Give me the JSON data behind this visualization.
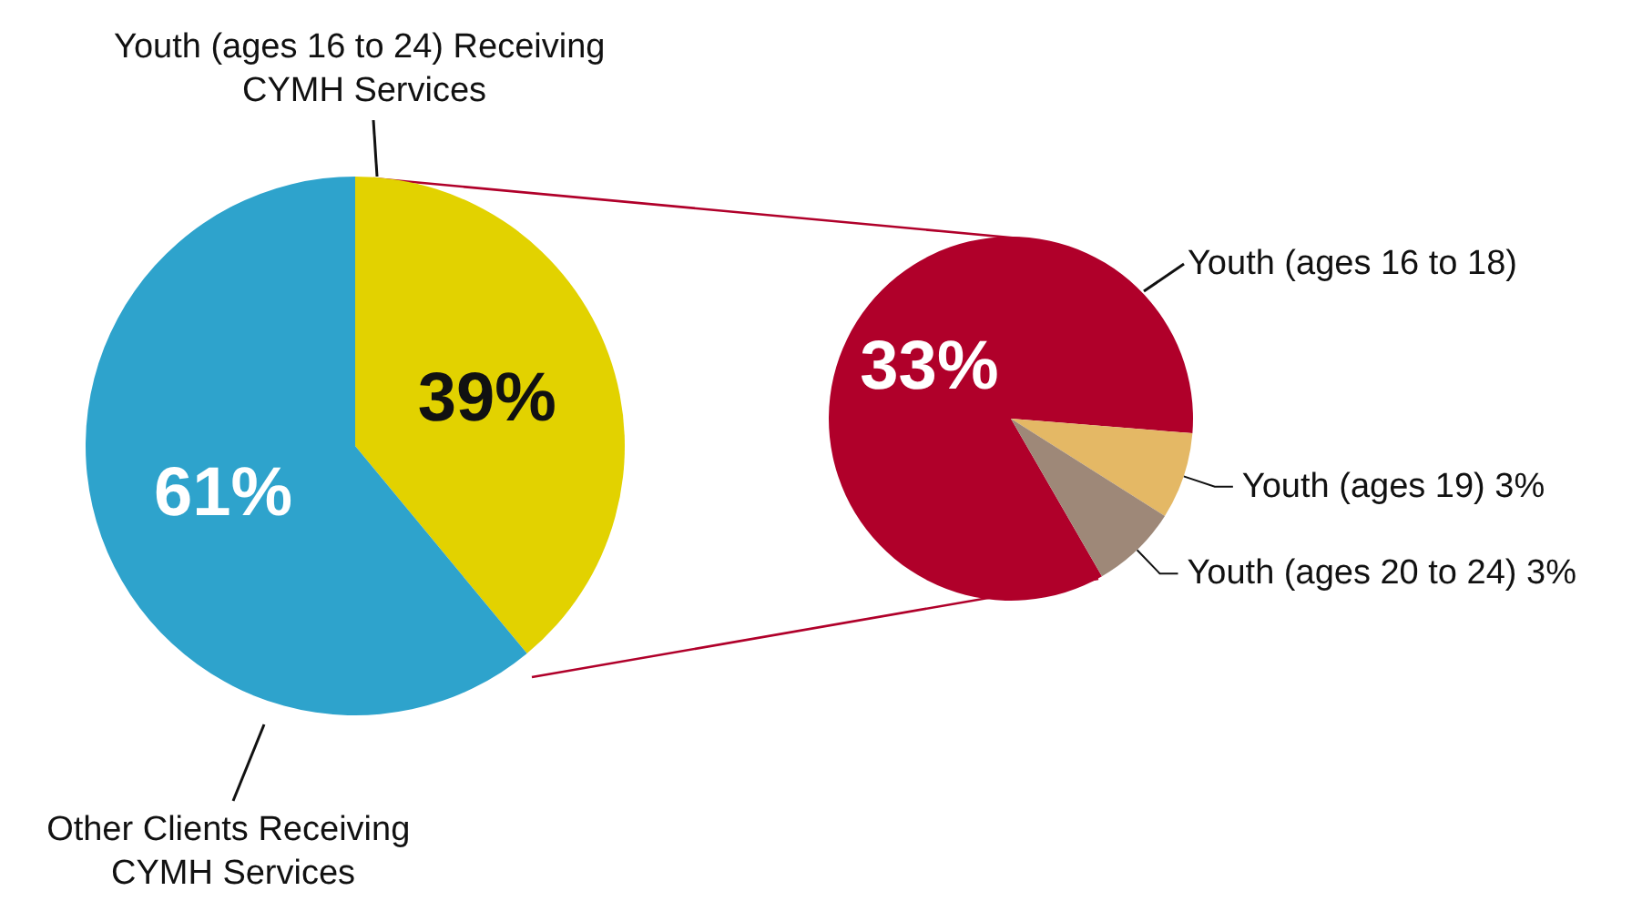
{
  "chart_data": [
    {
      "type": "pie",
      "categories": [
        "Youth (ages 16 to 24) Receiving CYMH Services",
        "Other Clients Receiving CYMH Services"
      ],
      "values": [
        39,
        61
      ],
      "colors": [
        "#e2d200",
        "#2ea3cc"
      ],
      "value_labels": [
        "39%",
        "61%"
      ]
    },
    {
      "type": "pie",
      "categories": [
        "Youth (ages 16 to 18)",
        "Youth (ages 19)",
        "Youth (ages 20 to 24)"
      ],
      "values": [
        33,
        3,
        3
      ],
      "colors": [
        "#b0002a",
        "#e4b865",
        "#9e8878"
      ],
      "value_labels": [
        "33%",
        "3%",
        "3%"
      ]
    }
  ]
}
